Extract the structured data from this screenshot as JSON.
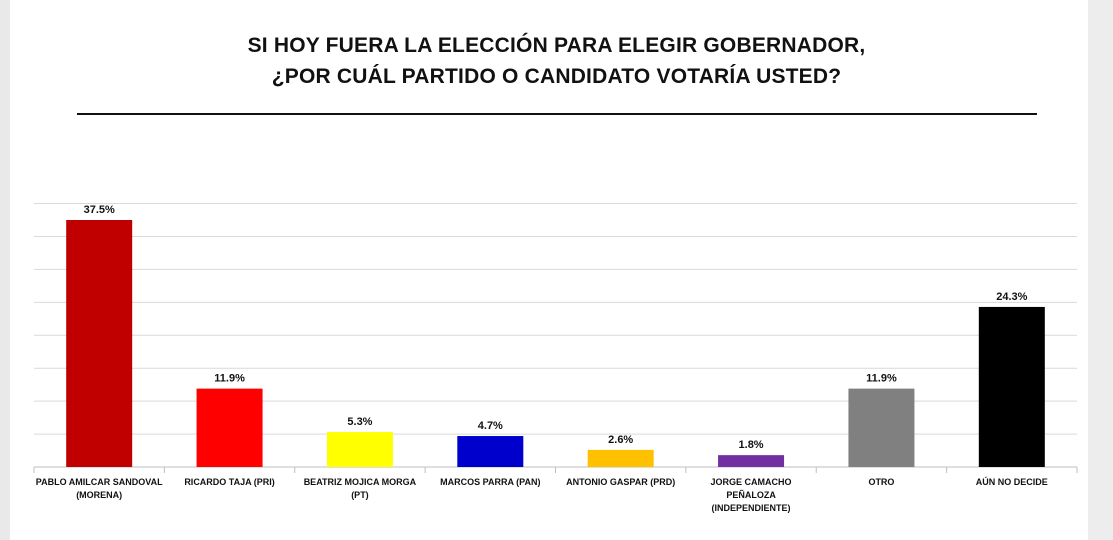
{
  "chart_data": {
    "type": "bar",
    "title_line1": "SI HOY FUERA LA ELECCIÓN PARA ELEGIR GOBERNADOR,",
    "title_line2": "¿POR CUÁL PARTIDO O CANDIDATO VOTARÍA USTED?",
    "xlabel": "",
    "ylabel": "",
    "ylim": [
      0,
      40
    ],
    "grid": true,
    "categories": [
      [
        "PABLO AMILCAR SANDOVAL",
        "(MORENA)"
      ],
      [
        "RICARDO TAJA (PRI)"
      ],
      [
        "BEATRIZ MOJICA MORGA",
        "(PT)"
      ],
      [
        "MARCOS PARRA (PAN)"
      ],
      [
        "ANTONIO GASPAR (PRD)"
      ],
      [
        "JORGE CAMACHO",
        "PEÑALOZA",
        "(INDEPENDIENTE)"
      ],
      [
        "OTRO"
      ],
      [
        "AÚN NO DECIDE"
      ]
    ],
    "values": [
      37.5,
      11.9,
      5.3,
      4.7,
      2.6,
      1.8,
      11.9,
      24.3
    ],
    "value_labels": [
      "37.5%",
      "11.9%",
      "5.3%",
      "4.7%",
      "2.6%",
      "1.8%",
      "11.9%",
      "24.3%"
    ],
    "colors": [
      "#c00000",
      "#ff0000",
      "#ffff00",
      "#0000cc",
      "#ffc000",
      "#7030a0",
      "#808080",
      "#000000"
    ]
  }
}
